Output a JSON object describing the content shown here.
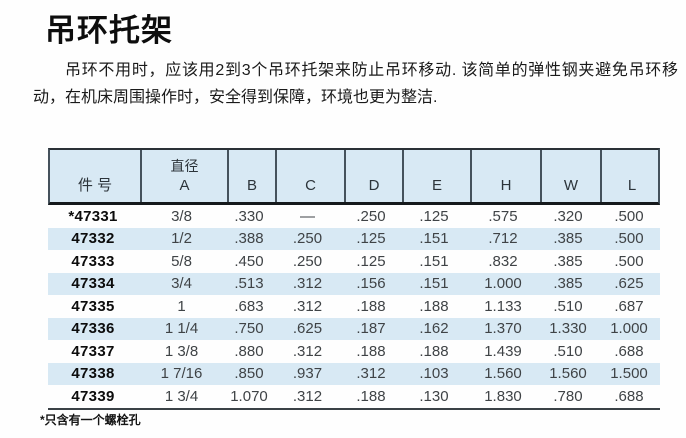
{
  "page": {
    "title": "吊环托架",
    "intro": "吊环不用时，应该用2到3个吊环托架来防止吊环移动. 该简单的弹性钢夹避免吊环移动，在机床周围操作时，安全得到保障，环境也更为整洁.",
    "footnote": "*只含有一个螺栓孔"
  },
  "table": {
    "columns": [
      {
        "label": "件 号"
      },
      {
        "sublabel": "直径",
        "label": "A"
      },
      {
        "label": "B"
      },
      {
        "label": "C"
      },
      {
        "label": "D"
      },
      {
        "label": "E"
      },
      {
        "label": "H"
      },
      {
        "label": "W"
      },
      {
        "label": "L"
      }
    ],
    "rows": [
      {
        "part": "*47331",
        "a": "3/8",
        "b": ".330",
        "c": "—",
        "d": ".250",
        "e": ".125",
        "h": ".575",
        "w": ".320",
        "l": ".500"
      },
      {
        "part": "47332",
        "a": "1/2",
        "b": ".388",
        "c": ".250",
        "d": ".125",
        "e": ".151",
        "h": ".712",
        "w": ".385",
        "l": ".500"
      },
      {
        "part": "47333",
        "a": "5/8",
        "b": ".450",
        "c": ".250",
        "d": ".125",
        "e": ".151",
        "h": ".832",
        "w": ".385",
        "l": ".500"
      },
      {
        "part": "47334",
        "a": "3/4",
        "b": ".513",
        "c": ".312",
        "d": ".156",
        "e": ".151",
        "h": "1.000",
        "w": ".385",
        "l": ".625"
      },
      {
        "part": "47335",
        "a": "1",
        "b": ".683",
        "c": ".312",
        "d": ".188",
        "e": ".188",
        "h": "1.133",
        "w": ".510",
        "l": ".687"
      },
      {
        "part": "47336",
        "a": "1 1/4",
        "b": ".750",
        "c": ".625",
        "d": ".187",
        "e": ".162",
        "h": "1.370",
        "w": "1.330",
        "l": "1.000"
      },
      {
        "part": "47337",
        "a": "1 3/8",
        "b": ".880",
        "c": ".312",
        "d": ".188",
        "e": ".188",
        "h": "1.439",
        "w": ".510",
        "l": ".688"
      },
      {
        "part": "47338",
        "a": "1 7/16",
        "b": ".850",
        "c": ".937",
        "d": ".312",
        "e": ".103",
        "h": "1.560",
        "w": "1.560",
        "l": "1.500"
      },
      {
        "part": "47339",
        "a": "1 3/4",
        "b": "1.070",
        "c": ".312",
        "d": ".188",
        "e": ".130",
        "h": "1.830",
        "w": ".780",
        "l": ".688"
      }
    ]
  },
  "colors": {
    "stripe_blue": "#d8e9f4",
    "header_separator": "#45525c",
    "border_dark": "#15191c",
    "value_text": "#3f4346"
  }
}
